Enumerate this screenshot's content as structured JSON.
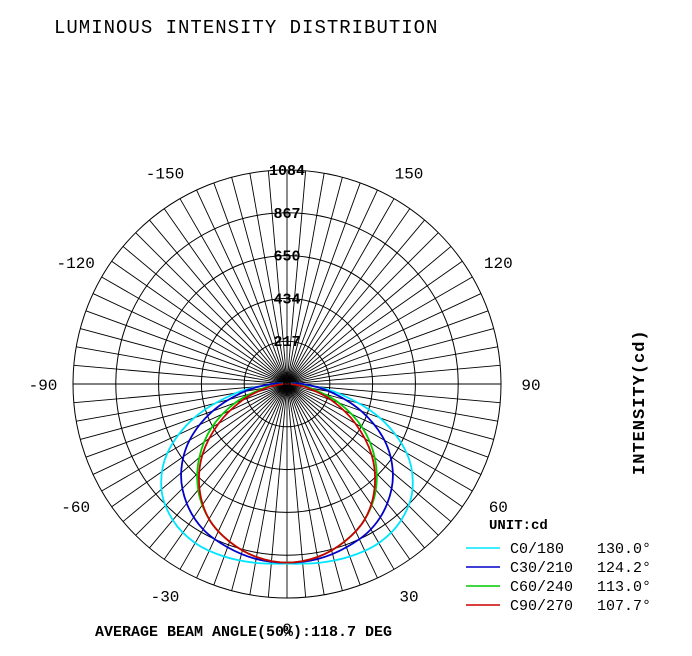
{
  "chart_data": {
    "type": "polar",
    "title": "LUMINOUS INTENSITY DISTRIBUTION",
    "ylabel": "INTENSITY(cd)",
    "unit": "UNIT:cd",
    "footer": "AVERAGE BEAM ANGLE(50%):118.7 DEG",
    "rmax": 1084,
    "ring_ticks": [
      "1084",
      "867",
      "650",
      "434",
      "217",
      "0"
    ],
    "angle_ticks": [
      {
        "angle": 0,
        "label": "0"
      },
      {
        "angle": 30,
        "label": "30"
      },
      {
        "angle": 60,
        "label": "60"
      },
      {
        "angle": 90,
        "label": "90"
      },
      {
        "angle": 120,
        "label": "120"
      },
      {
        "angle": 150,
        "label": "150"
      },
      {
        "angle": -30,
        "label": "-30"
      },
      {
        "angle": -60,
        "label": "-60"
      },
      {
        "angle": -90,
        "label": "-90"
      },
      {
        "angle": -120,
        "label": "-120"
      },
      {
        "angle": -150,
        "label": "-150"
      }
    ],
    "grid": true,
    "legend_position": "bottom-right",
    "series": [
      {
        "name": "C0/180",
        "beam_angle": "130.0°",
        "color": "#00e5ff",
        "angles": [
          -90,
          -80,
          -70,
          -60,
          -50,
          -40,
          -30,
          -20,
          -10,
          0,
          10,
          20,
          30,
          40,
          50,
          60,
          70,
          80,
          90
        ],
        "values": [
          70,
          260,
          500,
          700,
          830,
          900,
          930,
          930,
          920,
          910,
          920,
          930,
          930,
          900,
          830,
          700,
          500,
          260,
          70
        ]
      },
      {
        "name": "C30/210",
        "beam_angle": "124.2°",
        "color": "#0000cc",
        "angles": [
          -90,
          -80,
          -70,
          -60,
          -50,
          -40,
          -30,
          -20,
          -10,
          0,
          10,
          20,
          30,
          40,
          50,
          60,
          70,
          80,
          90
        ],
        "values": [
          80,
          220,
          400,
          570,
          700,
          790,
          850,
          880,
          900,
          905,
          900,
          880,
          850,
          790,
          700,
          570,
          400,
          220,
          80
        ]
      },
      {
        "name": "C60/240",
        "beam_angle": "113.0°",
        "color": "#00cc00",
        "angles": [
          -90,
          -80,
          -70,
          -60,
          -50,
          -40,
          -30,
          -20,
          -10,
          0,
          10,
          20,
          30,
          40,
          50,
          60,
          70,
          80,
          90
        ],
        "values": [
          20,
          120,
          280,
          440,
          580,
          700,
          790,
          850,
          890,
          905,
          890,
          850,
          790,
          700,
          580,
          440,
          280,
          120,
          20
        ]
      },
      {
        "name": "C90/270",
        "beam_angle": "107.7°",
        "color": "#cc0000",
        "angles": [
          -90,
          -80,
          -70,
          -60,
          -50,
          -40,
          -30,
          -20,
          -10,
          0,
          10,
          20,
          30,
          40,
          50,
          60,
          70,
          80,
          90
        ],
        "values": [
          15,
          100,
          240,
          400,
          560,
          690,
          790,
          850,
          890,
          905,
          890,
          850,
          790,
          690,
          560,
          400,
          240,
          100,
          15
        ]
      }
    ]
  }
}
